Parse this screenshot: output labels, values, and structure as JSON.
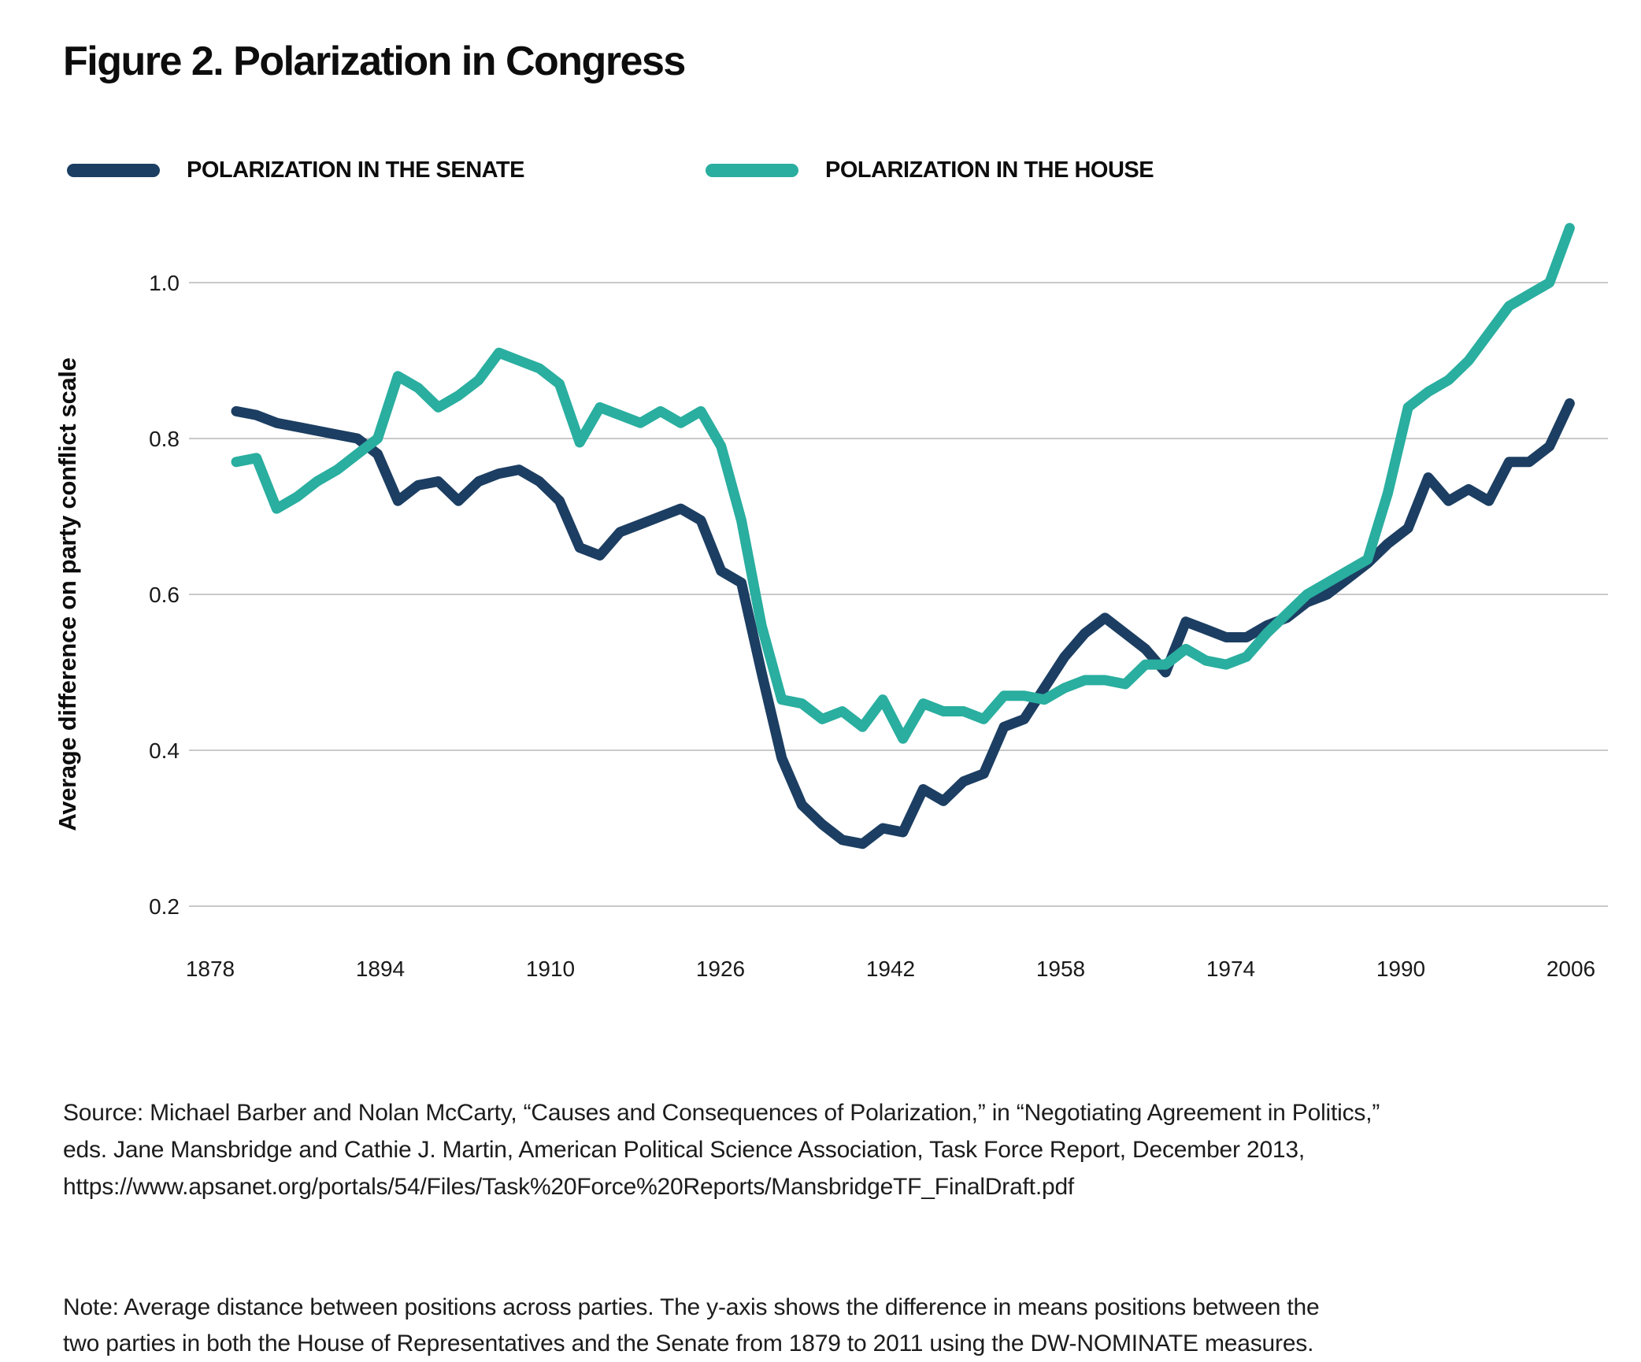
{
  "figure": {
    "title": "Figure 2. Polarization in Congress"
  },
  "y_axis": {
    "title": "Average difference on party conflict scale"
  },
  "source": {
    "lines": [
      "Source: Michael Barber and Nolan McCarty, “Causes and Consequences of Polarization,” in “Negotiating Agreement in Politics,”",
      "eds. Jane Mansbridge and Cathie J. Martin, American Political Science Association, Task Force Report, December 2013,",
      "https://www.apsanet.org/portals/54/Files/Task%20Force%20Reports/MansbridgeTF_FinalDraft.pdf"
    ]
  },
  "note": {
    "lines": [
      "Note: Average distance between positions across parties. The y-axis shows the difference in means positions between the",
      "two parties in both the House of Representatives and the Senate from 1879 to 2011 using the DW-NOMINATE measures."
    ]
  },
  "chart_data": {
    "type": "line",
    "title": "Figure 2. Polarization in Congress",
    "xlabel": "",
    "ylabel": "Average difference on party conflict scale",
    "ylim": [
      0.2,
      1.1
    ],
    "yticks": [
      0.2,
      0.4,
      0.6,
      0.8,
      1.0
    ],
    "xtick_labels": [
      "1878",
      "1894",
      "1910",
      "1926",
      "1942",
      "1958",
      "1974",
      "1990",
      "2006"
    ],
    "grid": true,
    "legend_position": "top",
    "grid_color": "#c9c9c9",
    "x": [
      1879,
      1881,
      1883,
      1885,
      1887,
      1889,
      1891,
      1893,
      1895,
      1897,
      1899,
      1901,
      1903,
      1905,
      1907,
      1909,
      1911,
      1913,
      1915,
      1917,
      1919,
      1921,
      1923,
      1925,
      1927,
      1929,
      1931,
      1933,
      1935,
      1937,
      1939,
      1941,
      1943,
      1945,
      1947,
      1949,
      1951,
      1953,
      1955,
      1957,
      1959,
      1961,
      1963,
      1965,
      1967,
      1969,
      1971,
      1973,
      1975,
      1977,
      1979,
      1981,
      1983,
      1985,
      1987,
      1989,
      1991,
      1993,
      1995,
      1997,
      1999,
      2001,
      2003,
      2005,
      2007,
      2009,
      2011
    ],
    "series": [
      {
        "name": "POLARIZATION IN THE SENATE",
        "color": "#1c3e62",
        "values": [
          0.835,
          0.83,
          0.82,
          0.815,
          0.81,
          0.805,
          0.8,
          0.78,
          0.72,
          0.74,
          0.745,
          0.72,
          0.745,
          0.755,
          0.76,
          0.745,
          0.72,
          0.66,
          0.65,
          0.68,
          0.69,
          0.7,
          0.71,
          0.695,
          0.63,
          0.615,
          0.5,
          0.39,
          0.33,
          0.305,
          0.285,
          0.28,
          0.3,
          0.295,
          0.35,
          0.335,
          0.36,
          0.37,
          0.43,
          0.44,
          0.48,
          0.52,
          0.55,
          0.57,
          0.55,
          0.53,
          0.5,
          0.565,
          0.555,
          0.545,
          0.545,
          0.56,
          0.57,
          0.59,
          0.6,
          0.62,
          0.64,
          0.665,
          0.685,
          0.75,
          0.72,
          0.735,
          0.72,
          0.77,
          0.77,
          0.79,
          0.845
        ]
      },
      {
        "name": "POLARIZATION IN THE HOUSE",
        "color": "#29ae9f",
        "values": [
          0.77,
          0.775,
          0.71,
          0.725,
          0.745,
          0.76,
          0.78,
          0.8,
          0.88,
          0.865,
          0.84,
          0.855,
          0.875,
          0.91,
          0.9,
          0.89,
          0.87,
          0.795,
          0.84,
          0.83,
          0.82,
          0.835,
          0.82,
          0.835,
          0.79,
          0.695,
          0.56,
          0.465,
          0.46,
          0.44,
          0.45,
          0.43,
          0.465,
          0.415,
          0.46,
          0.45,
          0.45,
          0.44,
          0.47,
          0.47,
          0.465,
          0.48,
          0.49,
          0.49,
          0.485,
          0.51,
          0.51,
          0.53,
          0.515,
          0.51,
          0.52,
          0.55,
          0.575,
          0.6,
          0.615,
          0.63,
          0.645,
          0.73,
          0.84,
          0.86,
          0.875,
          0.9,
          0.935,
          0.97,
          0.985,
          1.0,
          1.07
        ]
      }
    ]
  }
}
